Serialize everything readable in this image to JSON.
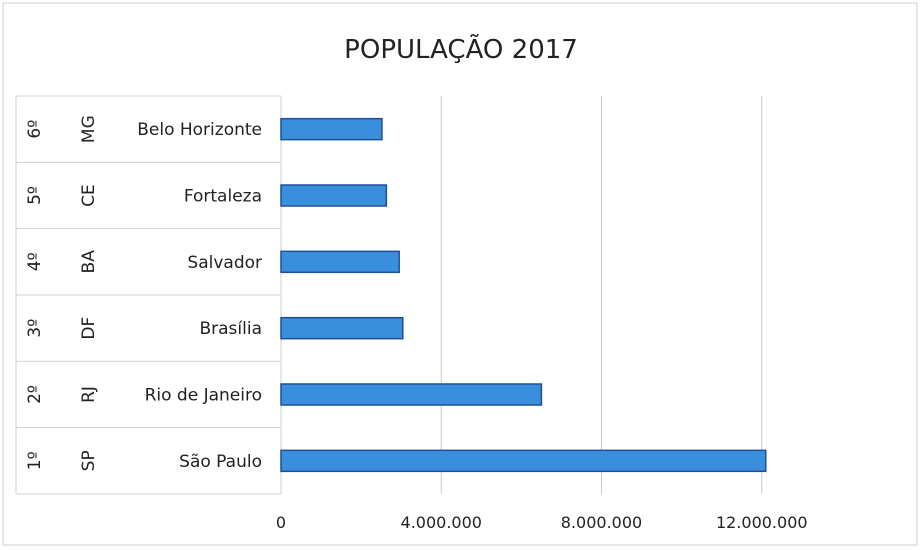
{
  "chart_data": {
    "type": "bar",
    "orientation": "horizontal",
    "title": "POPULAÇÃO 2017",
    "xlabel": "",
    "ylabel": "",
    "categories": [
      {
        "rank": "1º",
        "state": "SP",
        "city": "São Paulo"
      },
      {
        "rank": "2º",
        "state": "RJ",
        "city": "Rio de Janeiro"
      },
      {
        "rank": "3º",
        "state": "DF",
        "city": "Brasília"
      },
      {
        "rank": "4º",
        "state": "BA",
        "city": "Salvador"
      },
      {
        "rank": "5º",
        "state": "CE",
        "city": "Fortaleza"
      },
      {
        "rank": "6º",
        "state": "MG",
        "city": "Belo Horizonte"
      }
    ],
    "values": [
      12100000,
      6500000,
      3040000,
      2950000,
      2630000,
      2520000
    ],
    "xlim": [
      0,
      16000000
    ],
    "xticks": [
      0,
      4000000,
      8000000,
      12000000
    ],
    "xtick_labels": [
      "0",
      "4.000.000",
      "8.000.000",
      "12.000.000"
    ],
    "grid": true,
    "legend": "none",
    "colors": {
      "bar_fill": "#3a8fdc",
      "bar_stroke": "#1f4f99",
      "grid": "#c8c8c8",
      "border": "#d0d0d0",
      "text": "#222222"
    }
  }
}
